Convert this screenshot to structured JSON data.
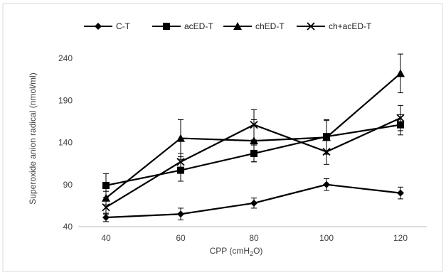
{
  "chart_data": {
    "type": "line",
    "title": "",
    "xlabel": "CPP (cmH2O)",
    "xlabel_main": "CPP (cmH",
    "xlabel_sub": "2",
    "xlabel_end": "O)",
    "ylabel": "Superoxide anion radical (nmol/ml)",
    "x": [
      40,
      60,
      80,
      100,
      120
    ],
    "x_tick_labels": [
      "40",
      "60",
      "80",
      "100",
      "120"
    ],
    "ylim": [
      40,
      240
    ],
    "y_ticks": [
      40,
      90,
      140,
      190,
      240
    ],
    "y_tick_labels": [
      "40",
      "90",
      "140",
      "190",
      "240"
    ],
    "grid": false,
    "legend_position": "top",
    "series": [
      {
        "name": "C-T",
        "marker": "diamond",
        "values": [
          51,
          55,
          68,
          90,
          80
        ],
        "errors": [
          5,
          7,
          6,
          7,
          7
        ]
      },
      {
        "name": "acED-T",
        "marker": "square",
        "values": [
          89,
          107,
          127,
          147,
          161
        ],
        "errors": [
          14,
          13,
          10,
          20,
          12
        ]
      },
      {
        "name": "chED-T",
        "marker": "triangle",
        "values": [
          74,
          145,
          142,
          146,
          222
        ],
        "errors": [
          8,
          22,
          25,
          20,
          23
        ]
      },
      {
        "name": "ch+acED-T",
        "marker": "x",
        "values": [
          63,
          117,
          161,
          129,
          169
        ],
        "errors": [
          8,
          10,
          18,
          15,
          15
        ]
      }
    ],
    "color": "#000000"
  }
}
